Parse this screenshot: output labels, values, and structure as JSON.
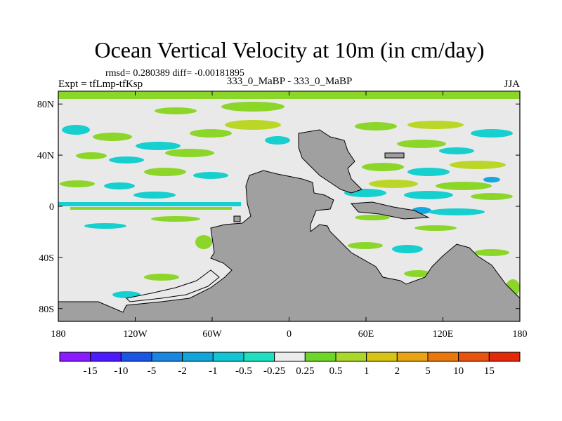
{
  "chart_data": {
    "type": "heatmap",
    "title": "Ocean Vertical Velocity at 10m (in cm/day)",
    "stats_text": "rmsd= 0.280389 diff= -0.00181895",
    "left_label": "Expt = tfLmp-tfKsp",
    "center_label": "333_0_MaBP - 333_0_MaBP",
    "right_label": "JJA",
    "x_ticks": [
      "180",
      "120W",
      "60W",
      "0",
      "60E",
      "120E",
      "180"
    ],
    "x_tick_values": [
      -180,
      -120,
      -60,
      0,
      60,
      120,
      180
    ],
    "y_ticks": [
      "80N",
      "40N",
      "0",
      "40S",
      "80S"
    ],
    "y_tick_values": [
      80,
      40,
      0,
      -40,
      -80
    ],
    "xlim": [
      -180,
      180
    ],
    "ylim": [
      -90,
      90
    ],
    "colorbar": {
      "labels": [
        "-15",
        "-10",
        "-5",
        "-2",
        "-1",
        "-0.5",
        "-0.25",
        "0.25",
        "0.5",
        "1",
        "2",
        "5",
        "10",
        "15"
      ],
      "colors": [
        "#8a1aff",
        "#4d1aff",
        "#1a55e6",
        "#1a86e0",
        "#12a5d8",
        "#12c5d2",
        "#1ee0c0",
        "#ececec",
        "#6ed62a",
        "#a8d82a",
        "#d8c414",
        "#e8a412",
        "#e8780e",
        "#e8520e",
        "#e22a0a"
      ]
    },
    "colors": {
      "land": "#a0a0a0",
      "background": "#e9e9e9",
      "pos_small": "#8cd62a",
      "pos_mid": "#bcd628",
      "neg_small": "#16cfcf",
      "neg_mid": "#14a8e0"
    }
  }
}
